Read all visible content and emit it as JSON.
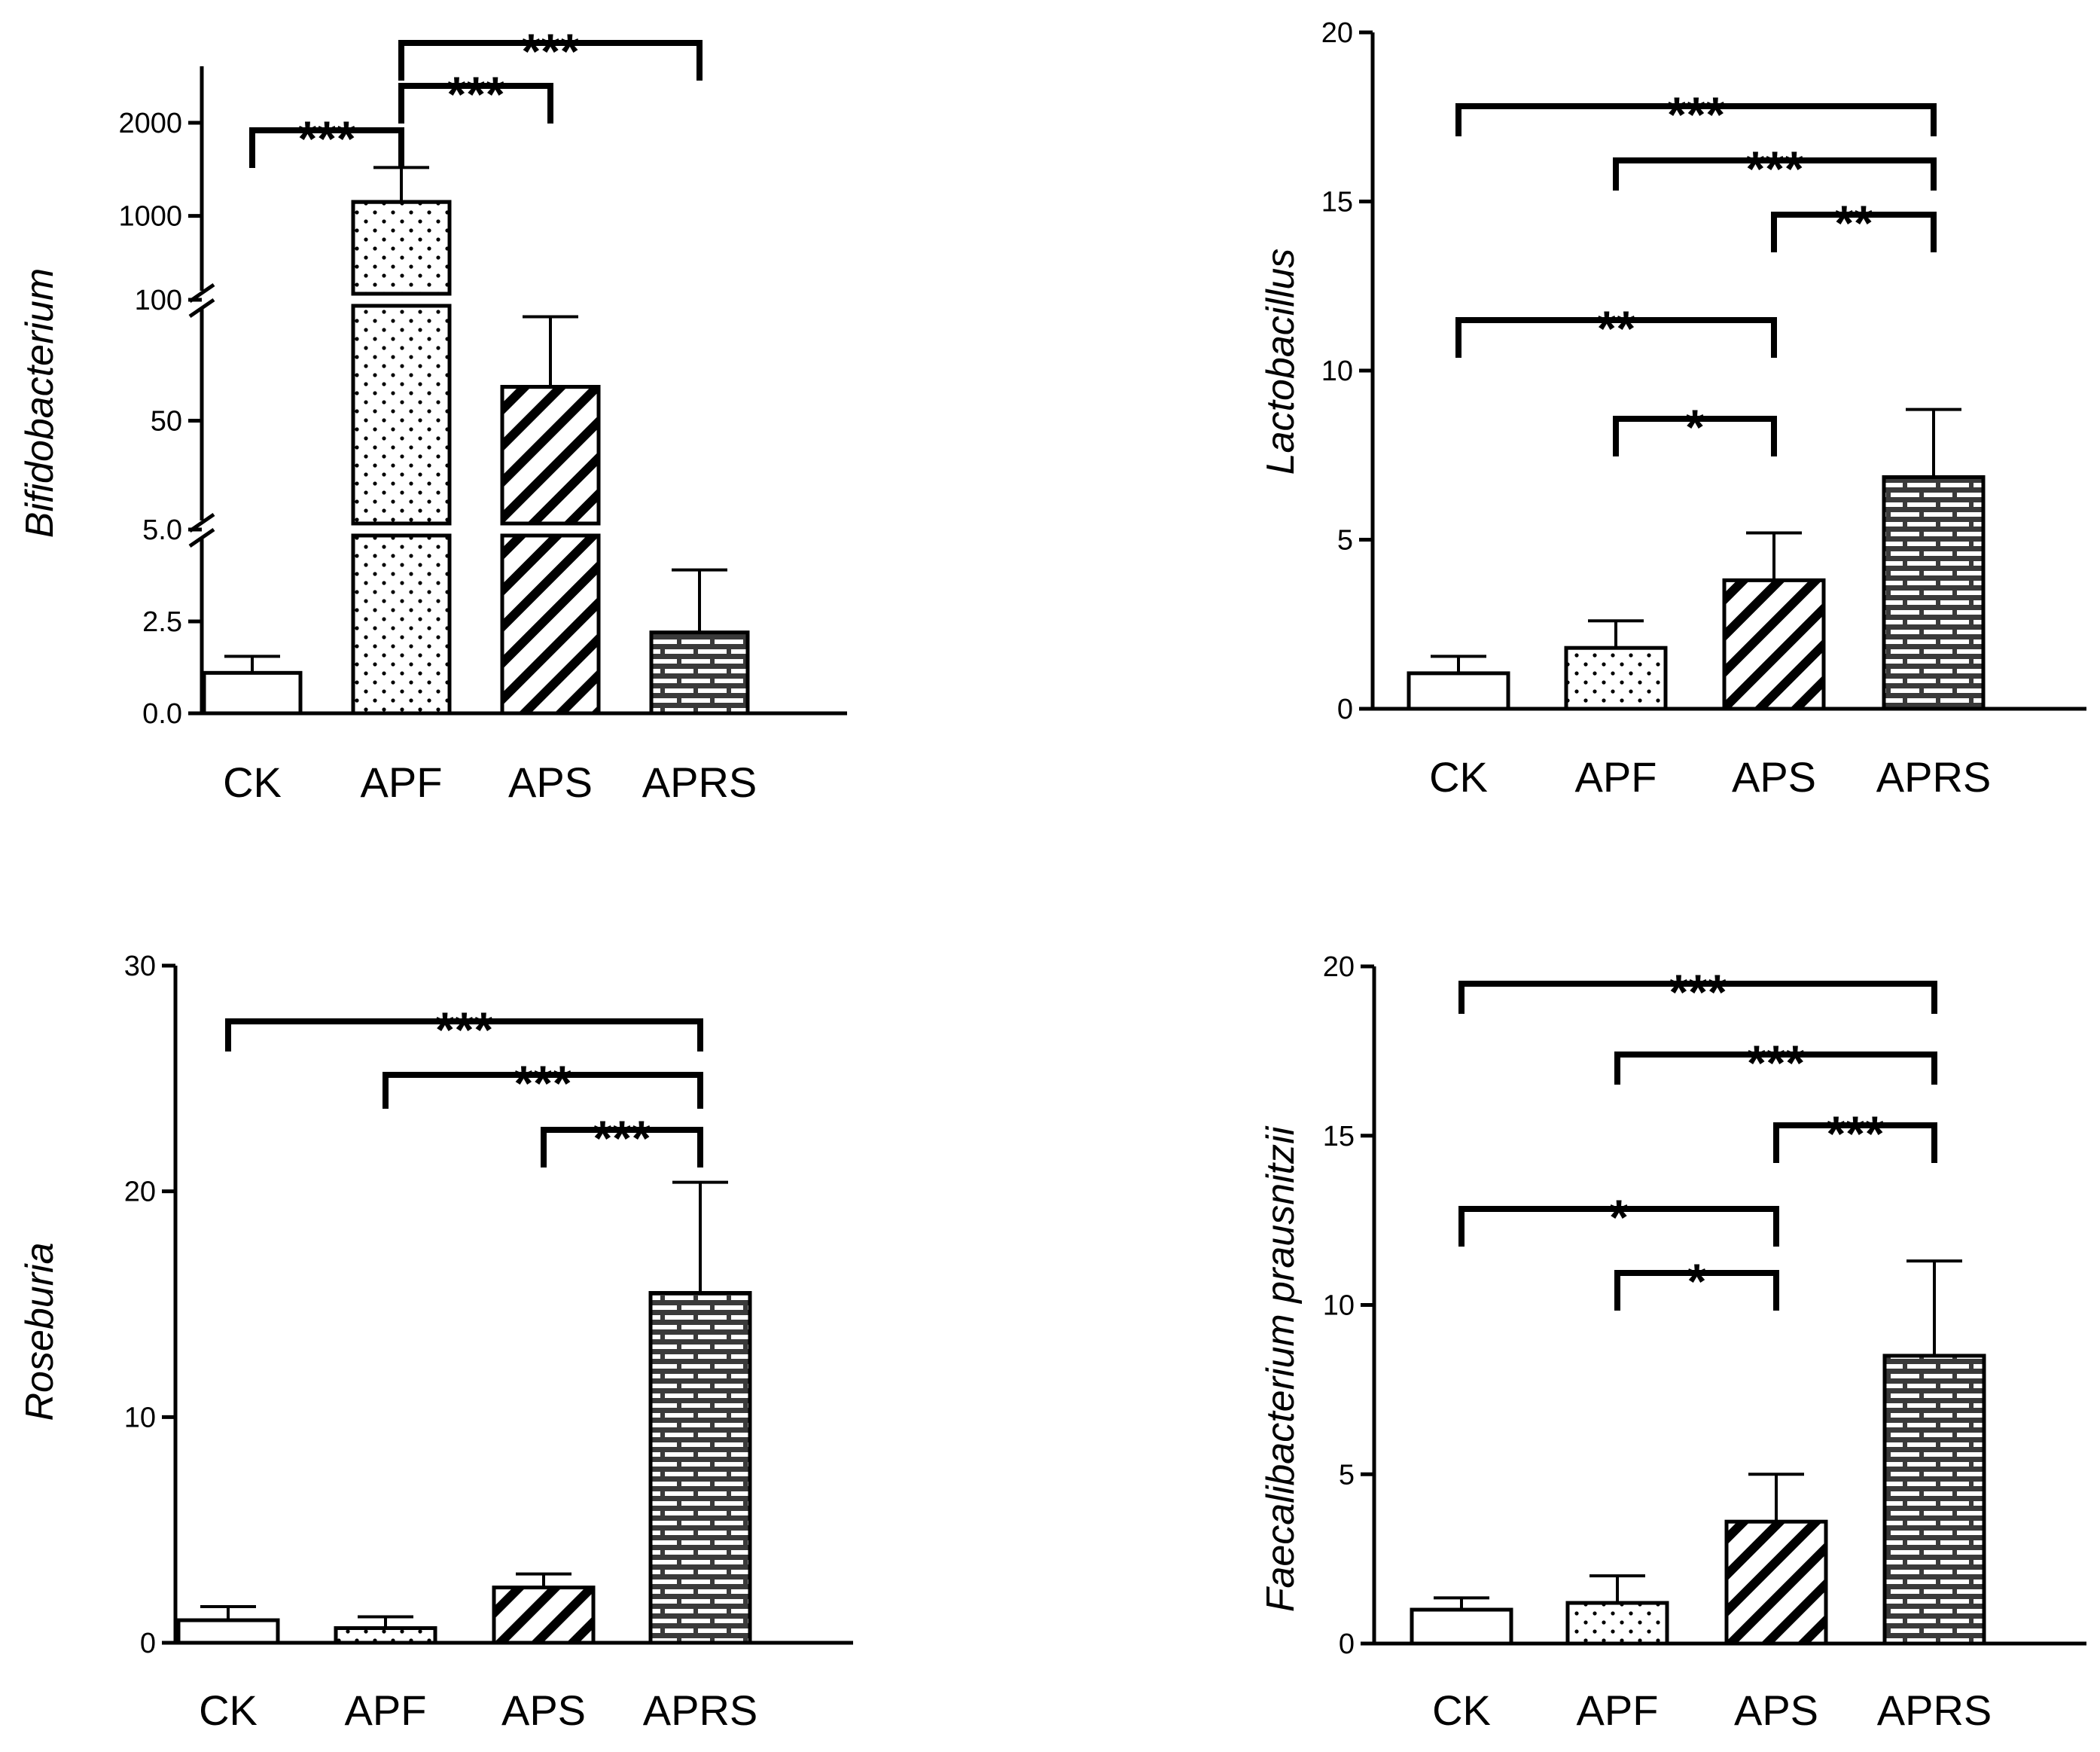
{
  "chart_data": [
    {
      "type": "bar",
      "ylabel": "Bifidobacterium",
      "categories": [
        "CK",
        "APF",
        "APS",
        "APRS"
      ],
      "values": [
        1.1,
        1150,
        64,
        2.2
      ],
      "errors": [
        0.45,
        370,
        29,
        1.7
      ],
      "patterns": [
        "none",
        "dots",
        "hatch",
        "brick"
      ],
      "axis_segments": [
        {
          "range": [
            0,
            5
          ],
          "ticks": [
            0,
            2.5,
            5
          ],
          "tick_labels": [
            "0.0",
            "2.5",
            "5.0"
          ]
        },
        {
          "range": [
            5,
            100
          ],
          "ticks": [
            50,
            100
          ],
          "tick_labels": [
            "50",
            "100"
          ]
        },
        {
          "range": [
            100,
            2000
          ],
          "ticks": [
            1000,
            2000
          ],
          "tick_labels": [
            "1000",
            "2000"
          ]
        }
      ],
      "comparisons": [
        {
          "from": "CK",
          "to": "APF",
          "label": "***"
        },
        {
          "from": "APF",
          "to": "APS",
          "label": "***"
        },
        {
          "from": "APF",
          "to": "APRS",
          "label": "***"
        }
      ]
    },
    {
      "type": "bar",
      "ylabel": "Lactobacillus",
      "categories": [
        "CK",
        "APF",
        "APS",
        "APRS"
      ],
      "values": [
        1.05,
        1.8,
        3.8,
        6.85
      ],
      "errors": [
        0.5,
        0.8,
        1.4,
        2.0
      ],
      "patterns": [
        "none",
        "dots",
        "hatch",
        "brick"
      ],
      "ylim": [
        0,
        20
      ],
      "yticks": [
        0,
        5,
        10,
        15,
        20
      ],
      "comparisons": [
        {
          "from": "CK",
          "to": "APRS",
          "label": "***"
        },
        {
          "from": "APF",
          "to": "APRS",
          "label": "***"
        },
        {
          "from": "APS",
          "to": "APRS",
          "label": "**"
        },
        {
          "from": "CK",
          "to": "APS",
          "label": "**"
        },
        {
          "from": "APF",
          "to": "APS",
          "label": "*"
        }
      ]
    },
    {
      "type": "bar",
      "ylabel": "Roseburia",
      "categories": [
        "CK",
        "APF",
        "APS",
        "APRS"
      ],
      "values": [
        1.0,
        0.65,
        2.45,
        15.5
      ],
      "errors": [
        0.6,
        0.5,
        0.6,
        4.9
      ],
      "patterns": [
        "none",
        "dots",
        "hatch",
        "brick"
      ],
      "ylim": [
        0,
        30
      ],
      "yticks": [
        0,
        10,
        20,
        30
      ],
      "comparisons": [
        {
          "from": "CK",
          "to": "APRS",
          "label": "***"
        },
        {
          "from": "APF",
          "to": "APRS",
          "label": "***"
        },
        {
          "from": "APS",
          "to": "APRS",
          "label": "***"
        }
      ]
    },
    {
      "type": "bar",
      "ylabel": "Faecalibacterium prausnitzii",
      "categories": [
        "CK",
        "APF",
        "APS",
        "APRS"
      ],
      "values": [
        1.0,
        1.2,
        3.6,
        8.5
      ],
      "errors": [
        0.35,
        0.8,
        1.4,
        2.8
      ],
      "patterns": [
        "none",
        "dots",
        "hatch",
        "brick"
      ],
      "ylim": [
        0,
        20
      ],
      "yticks": [
        0,
        5,
        10,
        15,
        20
      ],
      "comparisons": [
        {
          "from": "CK",
          "to": "APRS",
          "label": "***"
        },
        {
          "from": "APF",
          "to": "APRS",
          "label": "***"
        },
        {
          "from": "APS",
          "to": "APRS",
          "label": "***"
        },
        {
          "from": "CK",
          "to": "APS",
          "label": "*"
        },
        {
          "from": "APF",
          "to": "APS",
          "label": "*"
        }
      ]
    }
  ]
}
